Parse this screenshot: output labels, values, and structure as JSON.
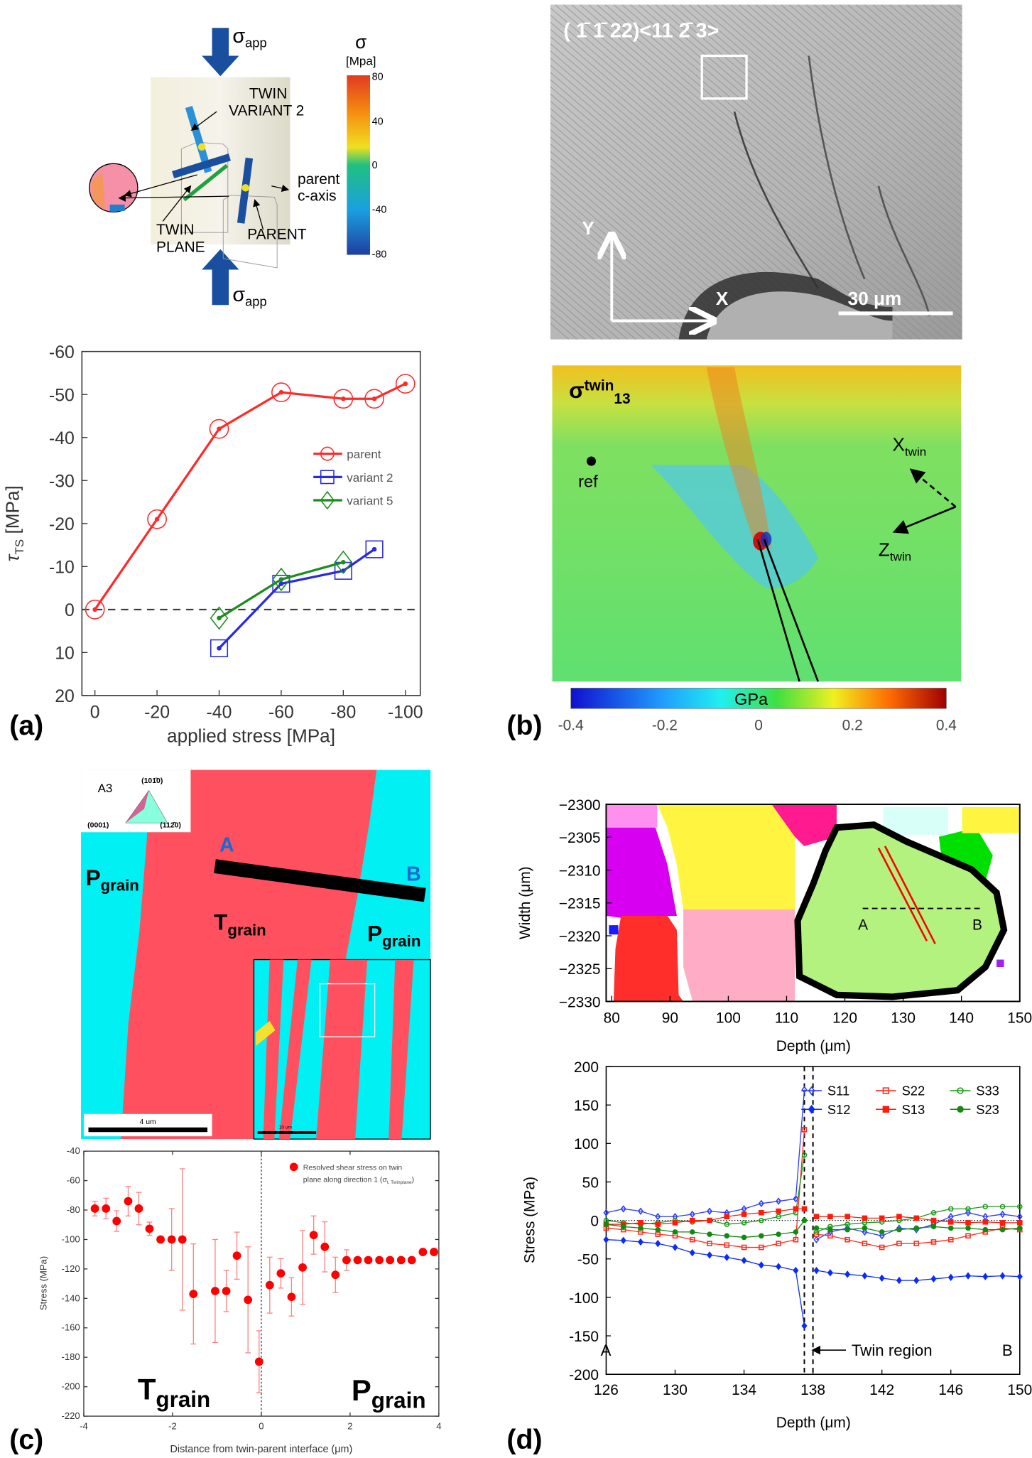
{
  "panel_labels": [
    "(a)",
    "(b)",
    "(c)",
    "(d)"
  ],
  "panel_a_diagram": {
    "sigma": "σ",
    "app": "app",
    "twin_variant_line1": "TWIN",
    "twin_variant_line2": "VARIANT 2",
    "twin_plane_line1": "TWIN",
    "twin_plane_line2": "PLANE",
    "parent": "PARENT",
    "parent_c_axis_line1": "parent",
    "parent_c_axis_line2": "c-axis",
    "colorbar_title": "σ",
    "colorbar_unit": "[Mpa]",
    "colorbar_ticks": [
      "80",
      "40",
      "0",
      "-40",
      "-80"
    ]
  },
  "panel_b": {
    "orientation_label": "( 1̄ 1̄ 22)<11 2̄ 3>",
    "axis_y": "Y",
    "axis_x": "X",
    "scale_bar": "30 μm",
    "map_sigma": "σ",
    "map_sup": "twin",
    "map_sub": "13",
    "ref": "ref",
    "x_twin": "X",
    "z_twin": "Z",
    "twin_sub": "twin",
    "colorbar_unit": "GPa",
    "colorbar_ticks": [
      "-0.4",
      "-0.2",
      "0",
      "0.2",
      "0.4"
    ]
  },
  "panel_c_map": {
    "legend_title": "A3",
    "legend_top": "(101̄0)",
    "legend_left": "(0001)",
    "legend_right": "(112̄0)",
    "label_a": "A",
    "label_b": "B",
    "p": "P",
    "t": "T",
    "grain": "grain",
    "scale_main": "4 um",
    "scale_inset": "10 um"
  },
  "panel_d_map": {
    "ylabel": "Width (μm)",
    "xlabel": "Depth (μm)",
    "yticks": [
      "−2300",
      "−2305",
      "−2310",
      "−2315",
      "−2320",
      "−2325",
      "−2330"
    ],
    "xticks": [
      "80",
      "90",
      "100",
      "110",
      "120",
      "130",
      "140",
      "150"
    ],
    "label_a": "A",
    "label_b": "B"
  },
  "chart_data": [
    {
      "id": "a",
      "type": "line",
      "title": "",
      "xlabel": "applied stress [MPa]",
      "ylabel_main": "τ",
      "ylabel_sub": "TS",
      "ylabel_unit": "[MPa]",
      "xlim": [
        0,
        -100
      ],
      "ylim": [
        -60,
        20
      ],
      "xticks": [
        0,
        -20,
        -40,
        -60,
        -80,
        -100
      ],
      "yticks": [
        -60,
        -50,
        -40,
        -30,
        -20,
        -10,
        0,
        10,
        20
      ],
      "legend_position": "center-right",
      "series": [
        {
          "name": "parent",
          "color": "#ff2a2a",
          "marker": "circle",
          "x": [
            0,
            -20,
            -40,
            -60,
            -80,
            -90,
            -100
          ],
          "y": [
            0,
            -21,
            -42,
            -50.5,
            -49,
            -49,
            -52.5
          ]
        },
        {
          "name": "variant 2",
          "color": "#2a2ae0",
          "marker": "square",
          "x": [
            -40,
            -60,
            -80,
            -90
          ],
          "y": [
            9,
            -6,
            -9,
            -14
          ]
        },
        {
          "name": "variant 5",
          "color": "#1e8c1e",
          "marker": "diamond",
          "x": [
            -40,
            -60,
            -80
          ],
          "y": [
            2,
            -7,
            -11
          ]
        }
      ]
    },
    {
      "id": "c",
      "type": "scatter",
      "xlabel": "Distance from twin-parent interface (μm)",
      "ylabel": "Stress (MPa)",
      "xlim": [
        -4,
        4
      ],
      "ylim": [
        -220,
        -40
      ],
      "xticks": [
        -4,
        -2,
        0,
        2,
        4
      ],
      "yticks": [
        -40,
        -60,
        -80,
        -100,
        -120,
        -140,
        -160,
        -180,
        -200,
        -220
      ],
      "legend_line1": "Resolved shear stress on twin",
      "legend_line2": "plane along direction 1 (σ",
      "legend_sub": "t, Twinplane",
      "legend_close": ")",
      "legend_position": "top-right",
      "region_left": "T",
      "region_right": "P",
      "region_sub": "grain",
      "color": "#ff0000",
      "x": [
        -3.75,
        -3.5,
        -3.26,
        -3.0,
        -2.76,
        -2.52,
        -2.27,
        -2.02,
        -1.78,
        -1.53,
        -1.04,
        -0.79,
        -0.55,
        -0.3,
        -0.05,
        0.19,
        0.44,
        0.68,
        0.93,
        1.18,
        1.43,
        1.67,
        1.92,
        2.17,
        2.41,
        2.66,
        2.9,
        3.15,
        3.39,
        3.64,
        3.89
      ],
      "y": [
        -79,
        -79,
        -87.5,
        -74,
        -79,
        -92.7,
        -100,
        -100,
        -100,
        -137,
        -135,
        -135,
        -111,
        -141,
        -183,
        -131,
        -123,
        -139,
        -119,
        -97,
        -105,
        -124,
        -114,
        -114,
        -114,
        -114,
        -114,
        -114,
        -114,
        -108.5,
        -108.5
      ],
      "err": [
        5,
        7,
        7,
        10,
        11,
        4.5,
        1,
        21,
        48,
        34,
        35,
        14,
        16,
        36,
        21,
        19,
        10,
        13,
        25,
        13,
        17,
        12,
        7,
        1,
        1,
        1,
        1,
        1,
        2,
        2,
        2
      ]
    },
    {
      "id": "d",
      "type": "line",
      "xlabel": "Depth (μm)",
      "ylabel": "Stress (MPa)",
      "xlim": [
        126,
        150
      ],
      "ylim": [
        -200,
        200
      ],
      "xticks": [
        126,
        130,
        134,
        138,
        142,
        146,
        150
      ],
      "yticks": [
        200,
        150,
        100,
        50,
        0,
        -50,
        -100,
        -150,
        -200
      ],
      "twin_region_bounds": [
        137.5,
        138
      ],
      "annotation": "Twin region",
      "label_a": "A",
      "label_b": "B",
      "legend_position": "top-right",
      "x_left": [
        126,
        127,
        128,
        129,
        130,
        131,
        132,
        133,
        134,
        135,
        136,
        137,
        137.5
      ],
      "x_right": [
        138.2,
        139,
        140,
        141,
        142,
        143,
        144,
        145,
        146,
        147,
        148,
        149,
        150
      ],
      "series": [
        {
          "name": "S11",
          "color": "#2a3cff",
          "marker": "open-diamond",
          "y_left": [
            10,
            15,
            12,
            5,
            5,
            8,
            12,
            10,
            15,
            22,
            25,
            28,
            170
          ],
          "y_right": [
            -25,
            -15,
            -10,
            -15,
            -20,
            -10,
            -12,
            -5,
            5,
            10,
            5,
            8,
            5
          ]
        },
        {
          "name": "S22",
          "color": "#ff2a1a",
          "marker": "open-square",
          "y_left": [
            -10,
            -12,
            -15,
            -18,
            -20,
            -25,
            -30,
            -32,
            -35,
            -35,
            -30,
            -25,
            118
          ],
          "y_right": [
            -18,
            -20,
            -25,
            -30,
            -35,
            -30,
            -30,
            -28,
            -25,
            -20,
            -15,
            -10,
            -12
          ]
        },
        {
          "name": "S33",
          "color": "#1a9a1a",
          "marker": "open-circle",
          "y_left": [
            0,
            -3,
            -5,
            -3,
            0,
            -2,
            0,
            -5,
            -3,
            0,
            5,
            10,
            85
          ],
          "y_right": [
            -15,
            -8,
            -5,
            -3,
            -2,
            0,
            3,
            10,
            15,
            15,
            18,
            18,
            18
          ]
        },
        {
          "name": "S12",
          "color": "#0a2aff",
          "marker": "filled-diamond",
          "y_left": [
            -25,
            -26,
            -28,
            -30,
            -35,
            -42,
            -45,
            -48,
            -52,
            -58,
            -60,
            -65,
            -137
          ],
          "y_right": [
            -65,
            -68,
            -70,
            -72,
            -75,
            -78,
            -78,
            -76,
            -74,
            -72,
            -73,
            -72,
            -73
          ]
        },
        {
          "name": "S13",
          "color": "#ff1a0a",
          "marker": "filled-square",
          "y_left": [
            -5,
            -5,
            -3,
            -5,
            -3,
            0,
            0,
            5,
            8,
            10,
            12,
            15,
            15
          ],
          "y_right": [
            5,
            5,
            5,
            3,
            3,
            5,
            3,
            0,
            -2,
            -3,
            -2,
            -3,
            -3
          ]
        },
        {
          "name": "S23",
          "color": "#108a10",
          "marker": "filled-circle",
          "y_left": [
            -5,
            -8,
            -10,
            -12,
            -15,
            -15,
            -18,
            -20,
            -22,
            -20,
            -18,
            -15,
            0
          ],
          "y_right": [
            -10,
            -12,
            -12,
            -10,
            -15,
            -12,
            -10,
            -8,
            -10,
            -10,
            -12,
            -12,
            -10
          ]
        }
      ]
    }
  ]
}
